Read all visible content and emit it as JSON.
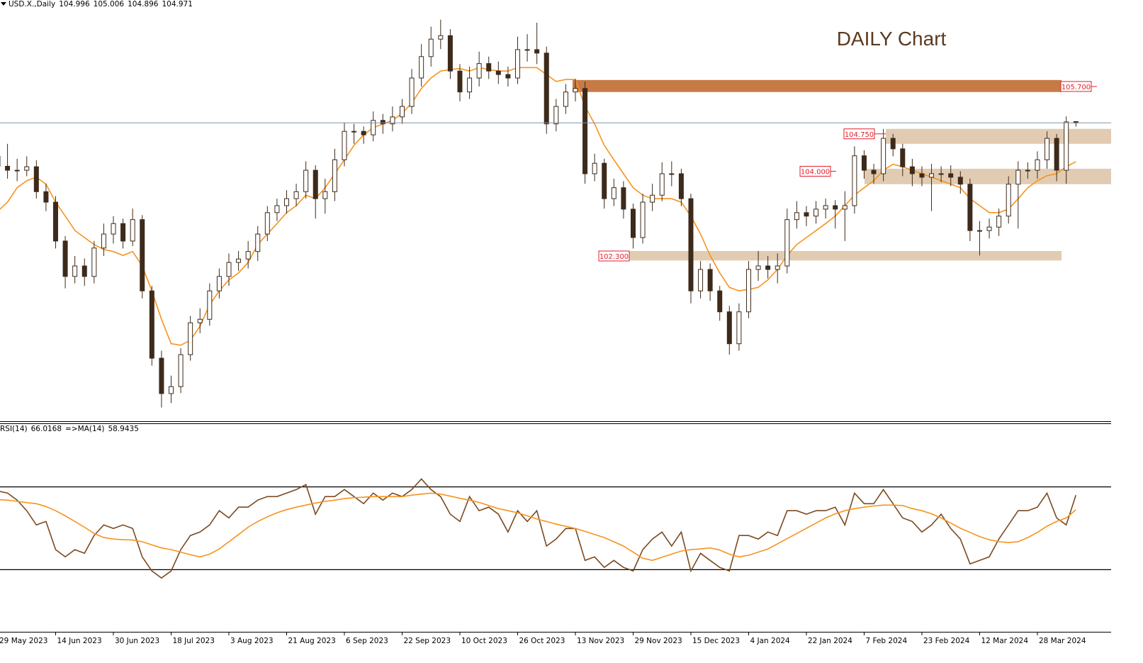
{
  "chart_data": {
    "type": "candlestick",
    "symbol": "USD.X.,Daily",
    "title": "DAILY Chart",
    "categories": [
      "29 May 2023",
      null,
      null,
      null,
      null,
      null,
      "14 Jun 2023",
      null,
      null,
      null,
      null,
      null,
      "30 Jun 2023",
      null,
      null,
      null,
      null,
      null,
      "18 Jul 2023",
      null,
      null,
      null,
      null,
      null,
      "3 Aug 2023",
      null,
      null,
      null,
      null,
      null,
      "21 Aug 2023",
      null,
      null,
      null,
      null,
      null,
      "6 Sep 2023",
      null,
      null,
      null,
      null,
      null,
      "22 Sep 2023",
      null,
      null,
      null,
      null,
      null,
      "10 Oct 2023",
      null,
      null,
      null,
      null,
      null,
      "26 Oct 2023",
      null,
      null,
      null,
      null,
      null,
      "13 Nov 2023",
      null,
      null,
      null,
      null,
      null,
      "29 Nov 2023",
      null,
      null,
      null,
      null,
      null,
      "15 Dec 2023",
      null,
      null,
      null,
      null,
      null,
      "4 Jan 2024",
      null,
      null,
      null,
      null,
      null,
      "22 Jan 2024",
      null,
      null,
      null,
      null,
      null,
      "7 Feb 2024",
      null,
      null,
      null,
      null,
      null,
      "23 Feb 2024",
      null,
      null,
      null,
      null,
      null,
      "12 Mar 2024",
      null,
      null,
      null,
      null,
      null,
      "28 Mar 2024",
      null,
      null,
      null,
      null
    ],
    "open": [
      104.3,
      104.1,
      104.02,
      104.02,
      104.09,
      103.59,
      103.38,
      102.6,
      101.89,
      102.1,
      101.89,
      102.46,
      102.74,
      102.95,
      102.6,
      103.03,
      101.6,
      100.25,
      99.54,
      99.68,
      100.32,
      100.96,
      101.03,
      101.6,
      101.89,
      102.17,
      102.24,
      102.39,
      102.74,
      103.17,
      103.31,
      103.45,
      103.59,
      104.02,
      103.45,
      103.59,
      104.23,
      104.8,
      104.8,
      104.73,
      105.02,
      104.95,
      105.09,
      105.3,
      105.87,
      106.3,
      106.65,
      106.72,
      106.01,
      105.59,
      105.87,
      106.16,
      106.01,
      105.94,
      105.87,
      106.44,
      106.44,
      106.37,
      104.95,
      105.3,
      105.59,
      105.66,
      103.95,
      104.16,
      103.45,
      103.67,
      103.24,
      102.67,
      103.38,
      103.52,
      103.95,
      103.95,
      103.45,
      101.6,
      102.03,
      101.6,
      101.18,
      100.54,
      101.18,
      102.03,
      102.1,
      102.03,
      102.1,
      103.03,
      103.17,
      103.1,
      103.24,
      103.31,
      103.24,
      103.31,
      104.31,
      104.02,
      103.95,
      104.66,
      104.45,
      104.09,
      103.95,
      103.88,
      103.95,
      103.95,
      103.88,
      103.74,
      102.81,
      102.81,
      102.88,
      103.1,
      103.74,
      104.02,
      104.02,
      104.23,
      104.66,
      104.02,
      104.996
    ],
    "high": [
      104.5,
      104.55,
      104.25,
      104.3,
      104.22,
      103.75,
      103.5,
      102.7,
      102.3,
      102.25,
      102.6,
      102.95,
      103.1,
      103.05,
      103.25,
      103.12,
      101.7,
      100.4,
      99.9,
      100.45,
      101.1,
      101.25,
      101.75,
      102.05,
      102.35,
      102.4,
      102.6,
      102.9,
      103.3,
      103.45,
      103.62,
      103.75,
      104.2,
      104.12,
      103.85,
      104.45,
      104.98,
      104.95,
      104.9,
      105.2,
      105.15,
      105.3,
      105.45,
      106.05,
      106.55,
      106.9,
      107.04,
      106.85,
      106.15,
      106.1,
      106.4,
      106.3,
      106.2,
      106.1,
      106.7,
      106.75,
      106.98,
      106.5,
      105.45,
      105.75,
      105.85,
      105.8,
      104.35,
      104.25,
      103.85,
      103.8,
      103.35,
      103.55,
      103.75,
      104.18,
      104.2,
      104.05,
      103.55,
      102.2,
      102.15,
      101.7,
      101.3,
      101.35,
      102.2,
      102.4,
      102.3,
      102.35,
      103.25,
      103.4,
      103.3,
      103.4,
      103.45,
      103.42,
      103.6,
      104.5,
      104.42,
      104.15,
      104.85,
      104.75,
      104.55,
      104.25,
      104.1,
      104.15,
      104.1,
      104.12,
      104.0,
      103.85,
      103.0,
      103.05,
      103.25,
      103.9,
      104.2,
      104.18,
      104.4,
      104.8,
      104.75,
      105.1,
      105.006
    ],
    "low": [
      103.9,
      103.85,
      103.8,
      103.9,
      103.45,
      103.2,
      102.45,
      101.65,
      101.75,
      101.7,
      101.75,
      102.3,
      102.55,
      102.45,
      102.5,
      101.45,
      100.1,
      99.26,
      99.35,
      99.55,
      100.2,
      100.75,
      100.9,
      101.45,
      101.7,
      102.0,
      102.05,
      102.2,
      102.6,
      103.0,
      103.15,
      103.3,
      103.45,
      103.05,
      103.15,
      103.4,
      104.1,
      104.55,
      104.55,
      104.6,
      104.75,
      104.8,
      104.95,
      105.15,
      105.7,
      106.1,
      106.45,
      105.85,
      105.4,
      105.45,
      105.7,
      105.85,
      105.75,
      105.7,
      105.75,
      106.2,
      106.15,
      104.75,
      104.8,
      105.15,
      105.4,
      103.75,
      103.8,
      103.25,
      103.3,
      103.05,
      102.45,
      102.55,
      103.2,
      103.4,
      103.7,
      103.3,
      101.35,
      101.45,
      101.4,
      101.0,
      100.32,
      100.4,
      101.05,
      101.8,
      101.85,
      101.75,
      101.95,
      102.85,
      102.9,
      102.95,
      103.05,
      102.85,
      102.6,
      103.15,
      103.85,
      103.75,
      103.8,
      104.3,
      103.9,
      103.7,
      103.7,
      103.2,
      103.78,
      103.7,
      103.55,
      102.6,
      102.31,
      102.65,
      102.7,
      102.95,
      102.85,
      103.85,
      103.85,
      104.05,
      103.8,
      103.75,
      104.896
    ],
    "close": [
      104.1,
      104.02,
      104.02,
      104.09,
      103.59,
      103.38,
      102.6,
      101.89,
      102.1,
      101.89,
      102.46,
      102.74,
      102.95,
      102.6,
      103.03,
      101.6,
      100.25,
      99.54,
      99.68,
      100.32,
      100.96,
      101.03,
      101.6,
      101.89,
      102.17,
      102.24,
      102.39,
      102.74,
      103.17,
      103.31,
      103.45,
      103.59,
      104.02,
      103.45,
      103.59,
      104.23,
      104.8,
      104.8,
      104.73,
      105.02,
      104.95,
      105.09,
      105.3,
      105.87,
      106.3,
      106.65,
      106.72,
      106.01,
      105.59,
      105.87,
      106.16,
      106.01,
      105.94,
      105.87,
      106.44,
      106.44,
      106.37,
      104.95,
      105.3,
      105.59,
      105.66,
      103.95,
      104.16,
      103.45,
      103.67,
      103.24,
      102.67,
      103.38,
      103.52,
      103.95,
      103.95,
      103.45,
      101.6,
      102.03,
      101.6,
      101.18,
      100.54,
      101.18,
      102.03,
      102.1,
      102.03,
      102.1,
      103.03,
      103.17,
      103.1,
      103.24,
      103.31,
      103.24,
      103.31,
      104.31,
      104.02,
      103.95,
      104.66,
      104.45,
      104.09,
      103.95,
      103.88,
      103.95,
      103.95,
      103.88,
      103.74,
      102.81,
      102.81,
      102.88,
      103.1,
      103.74,
      104.02,
      104.02,
      104.23,
      104.66,
      104.02,
      104.99,
      104.971
    ],
    "up_color": "#ffffff",
    "down_color": "#3d2a1a",
    "ylim": [
      99.0,
      107.435
    ],
    "moving_average": {
      "color": "#f7931e",
      "values": [
        103.2,
        103.38,
        103.67,
        103.81,
        103.88,
        103.74,
        103.38,
        103.1,
        102.81,
        102.67,
        102.53,
        102.43,
        102.39,
        102.31,
        102.39,
        102.1,
        101.6,
        101.03,
        100.54,
        100.51,
        100.61,
        100.89,
        101.32,
        101.6,
        101.82,
        101.96,
        102.17,
        102.53,
        102.74,
        102.95,
        103.17,
        103.31,
        103.52,
        103.45,
        103.67,
        103.95,
        104.23,
        104.52,
        104.73,
        104.87,
        104.95,
        105.02,
        105.16,
        105.37,
        105.66,
        105.87,
        106.01,
        106.04,
        106.06,
        106.01,
        106.08,
        106.04,
        106.01,
        106.01,
        106.08,
        106.08,
        106.08,
        105.94,
        105.8,
        105.84,
        105.84,
        105.3,
        104.95,
        104.52,
        104.23,
        103.95,
        103.67,
        103.52,
        103.45,
        103.45,
        103.45,
        103.38,
        103.1,
        102.74,
        102.31,
        101.96,
        101.67,
        101.6,
        101.63,
        101.67,
        101.82,
        102.03,
        102.31,
        102.53,
        102.67,
        102.81,
        102.95,
        103.1,
        103.31,
        103.52,
        103.67,
        103.81,
        104.02,
        104.14,
        104.09,
        104.02,
        103.95,
        103.88,
        103.81,
        103.74,
        103.67,
        103.45,
        103.31,
        103.17,
        103.17,
        103.24,
        103.45,
        103.67,
        103.81,
        103.91,
        103.95,
        104.09,
        104.19
      ]
    },
    "last_price_color": "#7f93a8",
    "zones": [
      {
        "level": {
          "value": 105.7,
          "label": "105.700"
        },
        "high": 105.83,
        "low": 105.59,
        "color": "#c67a45"
      },
      {
        "level": {
          "value": 104.75,
          "label": "104.750"
        },
        "high": 104.85,
        "low": 104.55,
        "color": "#dcc3a6"
      },
      {
        "level": {
          "value": 104.0,
          "label": "104.000"
        },
        "high": 104.05,
        "low": 103.74,
        "color": "#dcc3a6"
      },
      {
        "level": {
          "value": 102.3,
          "label": "102.300"
        },
        "high": 102.4,
        "low": 102.21,
        "color": "#dcc3a6"
      }
    ],
    "indicator": {
      "type": "line",
      "ylim": [
        0,
        100
      ],
      "levels": [
        70,
        30
      ],
      "series": [
        {
          "name": "RSI(14)",
          "color": "#7b4a1f",
          "values": [
            68,
            67.0,
            63.6,
            58.5,
            51.6,
            53.3,
            39.7,
            36.2,
            39.7,
            37.9,
            46.5,
            51.6,
            49.9,
            51.6,
            49.9,
            36.2,
            29.4,
            26.0,
            29.4,
            39.7,
            46.5,
            48.2,
            51.6,
            58.5,
            55.0,
            60.2,
            60.2,
            63.6,
            65.3,
            65.3,
            67.0,
            68.7,
            71.1,
            56.8,
            65.3,
            65.3,
            68.7,
            65.3,
            61.9,
            67.0,
            63.6,
            67.0,
            65.3,
            68.7,
            73.8,
            68.7,
            65.3,
            56.8,
            53.3,
            65.3,
            58.5,
            60.2,
            56.8,
            48.2,
            58.5,
            53.3,
            58.5,
            41.4,
            44.8,
            49.9,
            49.9,
            34.5,
            36.2,
            31.1,
            34.5,
            31.1,
            29.4,
            39.7,
            44.8,
            48.2,
            41.4,
            48.2,
            29.4,
            37.9,
            34.5,
            31.1,
            29.4,
            46.5,
            46.5,
            44.8,
            48.2,
            46.5,
            58.5,
            58.5,
            56.8,
            58.5,
            58.5,
            60.2,
            51.6,
            67.0,
            61.9,
            61.9,
            68.7,
            61.9,
            55.0,
            53.3,
            48.2,
            51.6,
            56.8,
            49.9,
            44.8,
            32.8,
            34.5,
            36.2,
            44.8,
            51.6,
            58.5,
            58.5,
            60.2,
            67.0,
            55.0,
            51.6,
            66.0168
          ]
        },
        {
          "name": "=>MA(14)",
          "color": "#f7931e",
          "values": [
            63.8,
            63.6,
            63.0,
            62.4,
            61.9,
            60.5,
            58.5,
            56.0,
            53.3,
            50.5,
            47.5,
            45.5,
            44.8,
            44.5,
            44.3,
            43.5,
            42.0,
            40.5,
            39.7,
            38.5,
            37.2,
            36.2,
            37.5,
            40.0,
            43.5,
            47.0,
            50.5,
            53.3,
            55.5,
            57.5,
            59.0,
            60.2,
            61.2,
            62.2,
            63.0,
            63.6,
            64.3,
            64.8,
            65.0,
            65.3,
            65.3,
            65.3,
            65.3,
            66.0,
            66.5,
            67.0,
            66.5,
            65.5,
            64.5,
            63.6,
            62.5,
            61.0,
            59.5,
            58.5,
            57.5,
            56.0,
            54.5,
            53.3,
            52.0,
            51.0,
            49.9,
            48.5,
            47.0,
            45.5,
            43.5,
            41.4,
            38.5,
            35.5,
            34.5,
            36.0,
            37.5,
            39.0,
            39.7,
            40.0,
            40.5,
            39.5,
            37.5,
            36.2,
            37.0,
            38.5,
            40.0,
            42.5,
            45.0,
            47.5,
            50.0,
            52.5,
            55.0,
            57.0,
            58.5,
            59.5,
            60.2,
            60.8,
            61.2,
            61.2,
            61.0,
            59.5,
            58.5,
            57.0,
            55.0,
            52.5,
            50.0,
            48.0,
            46.0,
            44.5,
            43.5,
            43.1,
            43.5,
            45.5,
            48.0,
            51.0,
            53.3,
            55.0,
            58.9435
          ]
        }
      ]
    }
  }
}
